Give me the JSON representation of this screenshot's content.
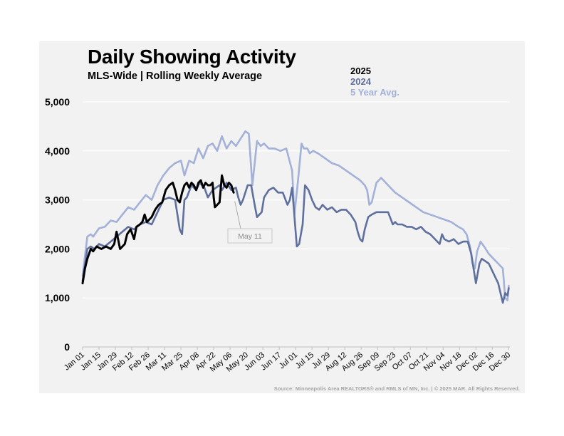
{
  "chart_data": {
    "type": "line",
    "title": "Daily Showing Activity",
    "subtitle": "MLS-Wide  |  Rolling Weekly Average",
    "xlabel": "",
    "ylabel": "",
    "ylim": [
      0,
      5000
    ],
    "yticks": [
      "0",
      "1,000",
      "2,000",
      "3,000",
      "4,000",
      "5,000"
    ],
    "ytick_values": [
      0,
      1000,
      2000,
      3000,
      4000,
      5000
    ],
    "grid": true,
    "legend_position": "top-right",
    "x_day_range": [
      1,
      366
    ],
    "xticks": [
      {
        "label": "Jan 01",
        "day": 1
      },
      {
        "label": "Jan 15",
        "day": 15
      },
      {
        "label": "Jan 29",
        "day": 29
      },
      {
        "label": "Feb 12",
        "day": 43
      },
      {
        "label": "Feb 26",
        "day": 57
      },
      {
        "label": "Mar 11",
        "day": 71
      },
      {
        "label": "Mar 25",
        "day": 85
      },
      {
        "label": "Apr 08",
        "day": 99
      },
      {
        "label": "Apr 22",
        "day": 113
      },
      {
        "label": "May 06",
        "day": 127
      },
      {
        "label": "May 20",
        "day": 141
      },
      {
        "label": "Jun 03",
        "day": 155
      },
      {
        "label": "Jun 17",
        "day": 169
      },
      {
        "label": "Jul 01",
        "day": 183
      },
      {
        "label": "Jul 15",
        "day": 197
      },
      {
        "label": "Jul 29",
        "day": 211
      },
      {
        "label": "Aug 12",
        "day": 225
      },
      {
        "label": "Aug 26",
        "day": 239
      },
      {
        "label": "Sep 09",
        "day": 253
      },
      {
        "label": "Sep 23",
        "day": 267
      },
      {
        "label": "Oct 07",
        "day": 281
      },
      {
        "label": "Oct 21",
        "day": 295
      },
      {
        "label": "Nov 04",
        "day": 309
      },
      {
        "label": "Nov 18",
        "day": 323
      },
      {
        "label": "Dec 02",
        "day": 337
      },
      {
        "label": "Dec 16",
        "day": 351
      },
      {
        "label": "Dec 30",
        "day": 365
      }
    ],
    "series": [
      {
        "name": "5 Year Avg.",
        "color": "#a3b1d9",
        "width": 2.6,
        "x": [
          1,
          5,
          8,
          10,
          15,
          20,
          25,
          30,
          35,
          40,
          45,
          50,
          55,
          60,
          65,
          70,
          75,
          80,
          85,
          88,
          92,
          96,
          100,
          104,
          108,
          112,
          116,
          120,
          124,
          128,
          132,
          136,
          140,
          143,
          146,
          150,
          153,
          156,
          160,
          165,
          170,
          175,
          180,
          182,
          185,
          188,
          190,
          193,
          195,
          198,
          202,
          208,
          214,
          220,
          226,
          232,
          238,
          242,
          244,
          246,
          248,
          252,
          256,
          262,
          268,
          274,
          280,
          286,
          292,
          298,
          304,
          310,
          316,
          322,
          326,
          329,
          332,
          334,
          336,
          338,
          341,
          344,
          348,
          352,
          356,
          360,
          362,
          364,
          365
        ],
        "y": [
          1450,
          2250,
          2300,
          2250,
          2420,
          2450,
          2580,
          2550,
          2700,
          2850,
          2800,
          2950,
          3100,
          3000,
          3300,
          3500,
          3650,
          3750,
          3800,
          3500,
          3800,
          3750,
          4050,
          3850,
          4100,
          4150,
          4000,
          4300,
          4050,
          4200,
          4100,
          4250,
          4400,
          4350,
          3300,
          4200,
          4100,
          4150,
          4050,
          4050,
          4000,
          4050,
          3600,
          2700,
          3400,
          4150,
          4050,
          4050,
          3950,
          4000,
          3950,
          3850,
          3750,
          3700,
          3600,
          3500,
          3400,
          3300,
          3200,
          2900,
          2950,
          3350,
          3450,
          3300,
          3150,
          3050,
          2950,
          2850,
          2750,
          2700,
          2650,
          2600,
          2550,
          2450,
          2400,
          2300,
          2050,
          1700,
          1600,
          1950,
          2150,
          2050,
          1900,
          1800,
          1700,
          1600,
          1000,
          950,
          1250
        ]
      },
      {
        "name": "2024",
        "color": "#5f6f9e",
        "width": 2.6,
        "x": [
          1,
          5,
          8,
          11,
          15,
          20,
          25,
          30,
          35,
          40,
          45,
          50,
          55,
          60,
          65,
          70,
          75,
          80,
          84,
          86,
          88,
          90,
          94,
          98,
          101,
          103,
          105,
          108,
          112,
          115,
          118,
          120,
          124,
          128,
          132,
          134,
          136,
          138,
          142,
          145,
          148,
          150,
          152,
          154,
          156,
          160,
          164,
          168,
          172,
          176,
          178,
          180,
          181,
          184,
          186,
          189,
          191,
          194,
          197,
          200,
          203,
          206,
          210,
          214,
          218,
          222,
          226,
          230,
          234,
          236,
          238,
          240,
          242,
          245,
          248,
          252,
          256,
          262,
          266,
          268,
          270,
          274,
          278,
          282,
          286,
          290,
          294,
          298,
          302,
          306,
          308,
          310,
          314,
          318,
          322,
          326,
          330,
          333,
          335,
          337,
          340,
          342,
          345,
          348,
          352,
          356,
          360,
          362,
          364,
          365
        ],
        "y": [
          1350,
          2000,
          2050,
          2000,
          2100,
          2050,
          2150,
          2250,
          2350,
          2450,
          2400,
          2500,
          2550,
          2500,
          2750,
          3000,
          3050,
          3000,
          2400,
          2300,
          3000,
          3050,
          3300,
          3200,
          3350,
          3300,
          3250,
          3050,
          3200,
          3250,
          3300,
          3200,
          3350,
          3200,
          3250,
          3050,
          2900,
          3000,
          3300,
          3300,
          2900,
          2650,
          2700,
          2750,
          3050,
          3200,
          3250,
          3150,
          3150,
          2900,
          3000,
          3250,
          2950,
          2050,
          2100,
          2500,
          3300,
          3200,
          3000,
          2850,
          2800,
          2900,
          2800,
          2850,
          2750,
          2800,
          2800,
          2700,
          2550,
          2350,
          2200,
          2150,
          2400,
          2650,
          2700,
          2750,
          2750,
          2750,
          2500,
          2550,
          2500,
          2500,
          2450,
          2450,
          2400,
          2450,
          2350,
          2300,
          2200,
          2100,
          2300,
          2200,
          2150,
          2200,
          2100,
          2150,
          2150,
          1900,
          1600,
          1300,
          1700,
          1800,
          1750,
          1700,
          1500,
          1300,
          900,
          1100,
          1050,
          1200
        ]
      },
      {
        "name": "2025",
        "color": "#000000",
        "width": 3.0,
        "x": [
          1,
          3,
          5,
          8,
          10,
          13,
          17,
          21,
          25,
          28,
          30,
          33,
          35,
          37,
          39,
          42,
          45,
          47,
          50,
          52,
          54,
          56,
          58,
          60,
          63,
          66,
          69,
          72,
          75,
          78,
          80,
          82,
          84,
          86,
          88,
          90,
          92,
          94,
          96,
          98,
          100,
          102,
          104,
          106,
          108,
          110,
          112,
          113,
          114,
          116,
          118,
          120,
          122,
          124,
          126,
          128,
          130
        ],
        "y": [
          1300,
          1600,
          1800,
          2000,
          1950,
          2050,
          2000,
          2050,
          2000,
          2100,
          2350,
          2000,
          2050,
          2100,
          2300,
          2400,
          2200,
          2450,
          2500,
          2550,
          2700,
          2550,
          2600,
          2650,
          2800,
          2900,
          2950,
          3200,
          3300,
          3350,
          3200,
          3000,
          2950,
          3150,
          3300,
          3350,
          3250,
          3350,
          3300,
          3200,
          3350,
          3400,
          3250,
          3350,
          3300,
          3300,
          3350,
          3050,
          2850,
          2900,
          2950,
          3500,
          3300,
          3250,
          3350,
          3300,
          3150
        ]
      }
    ],
    "annotations": [
      {
        "label": "May 11",
        "day": 131,
        "value": 3000
      }
    ]
  },
  "legend_entries": [
    {
      "label": "2025",
      "color": "#000000"
    },
    {
      "label": "2024",
      "color": "#5f6f9e"
    },
    {
      "label": "5 Year Avg.",
      "color": "#a3b1d9"
    }
  ],
  "source_text": "Source:    Minneapolis Area REALTORS® and RMLS of MN, Inc.  |  © 2025 MAR. All Rights Reserved."
}
